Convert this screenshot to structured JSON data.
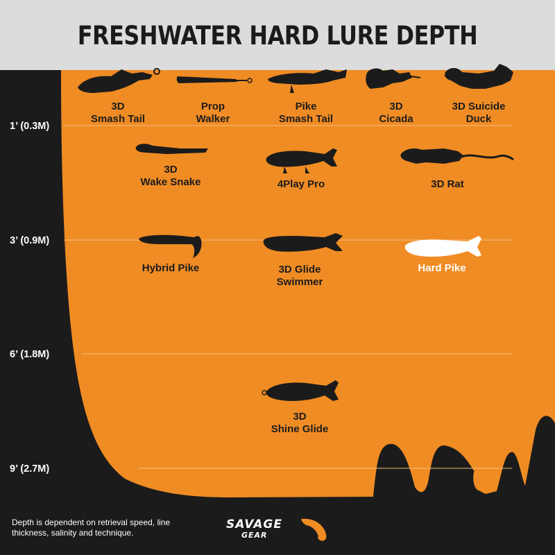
{
  "title": "FRESHWATER HARD LURE DEPTH",
  "depth_markers": [
    "1’ (0.3M)",
    "3’ (0.9M)",
    "6’ (1.8M)",
    "9’ (2.7M)"
  ],
  "lures": [
    {
      "name": "3D Smash Tail",
      "lines": [
        "3D",
        "Smash Tail"
      ]
    },
    {
      "name": "Prop Walker",
      "lines": [
        "Prop",
        "Walker"
      ]
    },
    {
      "name": "Pike Smash Tail",
      "lines": [
        "Pike",
        "Smash Tail"
      ]
    },
    {
      "name": "3D Cicada",
      "lines": [
        "3D",
        "Cicada"
      ]
    },
    {
      "name": "3D Suicide Duck",
      "lines": [
        "3D Suicide",
        "Duck"
      ]
    },
    {
      "name": "3D Wake Snake",
      "lines": [
        "3D",
        "Wake Snake"
      ]
    },
    {
      "name": "4Play Pro",
      "lines": [
        "4Play Pro"
      ]
    },
    {
      "name": "3D Rat",
      "lines": [
        "3D Rat"
      ]
    },
    {
      "name": "Hybrid Pike",
      "lines": [
        "Hybrid Pike"
      ]
    },
    {
      "name": "3D Glide Swimmer",
      "lines": [
        "3D Glide",
        "Swimmer"
      ]
    },
    {
      "name": "Hard Pike",
      "lines": [
        "Hard Pike"
      ],
      "highlight": true
    },
    {
      "name": "3D Shine Glide",
      "lines": [
        "3D",
        "Shine Glide"
      ]
    }
  ],
  "footnote": "Depth is dependent on retrieval speed, line thickness, salinity and technique.",
  "brand": {
    "word1": "SAVAGE",
    "word2": "GEAR"
  },
  "colors": {
    "water": "#f08c24",
    "bottom": "#1b1b1b",
    "header": "#dcdcdc",
    "highlight": "#ffffff"
  }
}
